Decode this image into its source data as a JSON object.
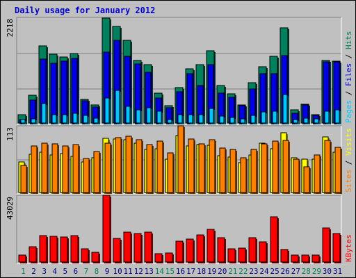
{
  "title": "Daily usage for January 2012",
  "colors": {
    "hits": "#00805c",
    "files": "#0000e6",
    "pages": "#00c8ff",
    "visits": "#ffff00",
    "sites": "#ff8000",
    "kbytes": "#ff0000",
    "weekend_label": "#00805c",
    "weekday_label": "#000080"
  },
  "chart_data": [
    {
      "type": "bar",
      "panel": "hits-files-pages",
      "ymax_label": "2218",
      "ylim": [
        0,
        2218
      ],
      "legend": [
        {
          "text": "Pages",
          "color": "#00c8ff"
        },
        {
          "text": " / ",
          "color": "#000000"
        },
        {
          "text": "Files",
          "color": "#0000e6"
        },
        {
          "text": " / ",
          "color": "#000000"
        },
        {
          "text": "Hits",
          "color": "#00805c"
        }
      ],
      "categories": [
        "1",
        "2",
        "3",
        "4",
        "5",
        "6",
        "7",
        "8",
        "9",
        "10",
        "11",
        "12",
        "13",
        "14",
        "15",
        "16",
        "17",
        "18",
        "19",
        "20",
        "21",
        "22",
        "23",
        "24",
        "25",
        "26",
        "27",
        "28",
        "29",
        "30",
        "31"
      ],
      "series": [
        {
          "name": "Hits",
          "values": [
            180,
            580,
            1620,
            1440,
            1380,
            1460,
            490,
            380,
            2210,
            2030,
            1740,
            1310,
            1220,
            630,
            360,
            750,
            1140,
            1220,
            1520,
            790,
            620,
            380,
            840,
            1180,
            1400,
            2000,
            270,
            400,
            180,
            1310,
            1300
          ]
        },
        {
          "name": "Files",
          "values": [
            80,
            480,
            1340,
            1250,
            1300,
            1360,
            460,
            330,
            1490,
            1730,
            1400,
            1240,
            1060,
            520,
            320,
            650,
            1030,
            790,
            1230,
            630,
            540,
            360,
            720,
            1030,
            1040,
            1410,
            200,
            380,
            160,
            1280,
            1280
          ]
        },
        {
          "name": "Pages",
          "values": [
            70,
            90,
            410,
            180,
            180,
            210,
            160,
            100,
            530,
            690,
            350,
            280,
            320,
            250,
            80,
            180,
            170,
            180,
            300,
            140,
            120,
            90,
            160,
            240,
            250,
            600,
            70,
            100,
            90,
            250,
            280
          ]
        }
      ]
    },
    {
      "type": "bar",
      "panel": "visits-sites",
      "ymax_label": "113",
      "ylim": [
        0,
        113
      ],
      "legend": [
        {
          "text": "Sites",
          "color": "#ff8000"
        },
        {
          "text": " / ",
          "color": "#000000"
        },
        {
          "text": "Visits",
          "color": "#ffff00"
        }
      ],
      "categories": [
        "1",
        "2",
        "3",
        "4",
        "5",
        "6",
        "7",
        "8",
        "9",
        "10",
        "11",
        "12",
        "13",
        "14",
        "15",
        "16",
        "17",
        "18",
        "19",
        "20",
        "21",
        "22",
        "23",
        "24",
        "25",
        "26",
        "27",
        "28",
        "29",
        "30",
        "31"
      ],
      "series": [
        {
          "name": "Visits",
          "values": [
            52,
            65,
            68,
            64,
            66,
            61,
            52,
            59,
            92,
            91,
            89,
            84,
            73,
            74,
            56,
            96,
            79,
            81,
            80,
            62,
            60,
            51,
            64,
            84,
            74,
            101,
            59,
            56,
            56,
            94,
            68
          ]
        },
        {
          "name": "Sites",
          "values": [
            46,
            79,
            83,
            82,
            79,
            81,
            58,
            69,
            83,
            93,
            95,
            89,
            81,
            87,
            67,
            113,
            91,
            82,
            89,
            75,
            73,
            59,
            73,
            82,
            87,
            88,
            57,
            44,
            63,
            88,
            77
          ]
        }
      ]
    },
    {
      "type": "bar",
      "panel": "kbytes",
      "ymax_label": "43029",
      "ylim": [
        0,
        43029
      ],
      "legend": [
        {
          "text": "KBytes",
          "color": "#ff0000"
        }
      ],
      "categories": [
        "1",
        "2",
        "3",
        "4",
        "5",
        "6",
        "7",
        "8",
        "9",
        "10",
        "11",
        "12",
        "13",
        "14",
        "15",
        "16",
        "17",
        "18",
        "19",
        "20",
        "21",
        "22",
        "23",
        "24",
        "25",
        "26",
        "27",
        "28",
        "29",
        "30",
        "31"
      ],
      "series": [
        {
          "name": "KBytes",
          "values": [
            4400,
            9800,
            16900,
            16500,
            16000,
            17000,
            8600,
            6200,
            43029,
            15300,
            19300,
            18400,
            19100,
            5600,
            5700,
            13600,
            14600,
            17500,
            20900,
            15800,
            8300,
            8800,
            15500,
            12800,
            29100,
            8100,
            4300,
            4300,
            4500,
            22100,
            18300
          ]
        }
      ]
    }
  ],
  "day_labels": [
    "1",
    "2",
    "3",
    "4",
    "5",
    "6",
    "7",
    "8",
    "9",
    "10",
    "11",
    "12",
    "13",
    "14",
    "15",
    "16",
    "17",
    "18",
    "19",
    "20",
    "21",
    "22",
    "23",
    "24",
    "25",
    "26",
    "27",
    "28",
    "29",
    "30",
    "31"
  ],
  "weekend_days": [
    1,
    7,
    8,
    14,
    15,
    21,
    22,
    28,
    29
  ]
}
